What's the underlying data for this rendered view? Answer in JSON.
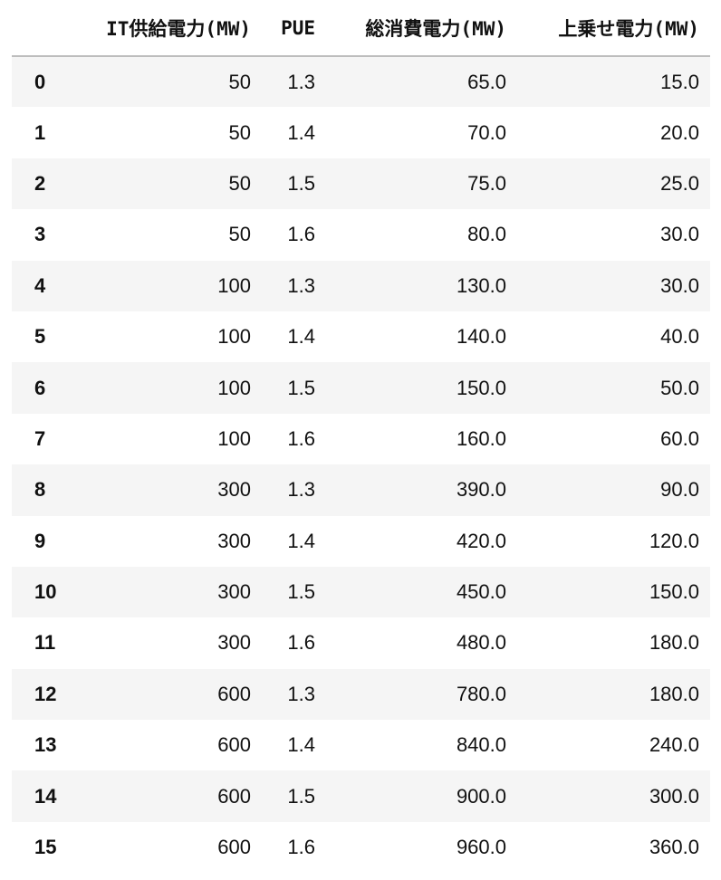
{
  "table": {
    "columns": [
      "",
      "IT供給電力(MW)",
      "PUE",
      "総消費電力(MW)",
      "上乗せ電力(MW)"
    ],
    "rows": [
      [
        "0",
        "50",
        "1.3",
        "65.0",
        "15.0"
      ],
      [
        "1",
        "50",
        "1.4",
        "70.0",
        "20.0"
      ],
      [
        "2",
        "50",
        "1.5",
        "75.0",
        "25.0"
      ],
      [
        "3",
        "50",
        "1.6",
        "80.0",
        "30.0"
      ],
      [
        "4",
        "100",
        "1.3",
        "130.0",
        "30.0"
      ],
      [
        "5",
        "100",
        "1.4",
        "140.0",
        "40.0"
      ],
      [
        "6",
        "100",
        "1.5",
        "150.0",
        "50.0"
      ],
      [
        "7",
        "100",
        "1.6",
        "160.0",
        "60.0"
      ],
      [
        "8",
        "300",
        "1.3",
        "390.0",
        "90.0"
      ],
      [
        "9",
        "300",
        "1.4",
        "420.0",
        "120.0"
      ],
      [
        "10",
        "300",
        "1.5",
        "450.0",
        "150.0"
      ],
      [
        "11",
        "300",
        "1.6",
        "480.0",
        "180.0"
      ],
      [
        "12",
        "600",
        "1.3",
        "780.0",
        "180.0"
      ],
      [
        "13",
        "600",
        "1.4",
        "840.0",
        "240.0"
      ],
      [
        "14",
        "600",
        "1.5",
        "900.0",
        "300.0"
      ],
      [
        "15",
        "600",
        "1.6",
        "960.0",
        "360.0"
      ]
    ]
  }
}
